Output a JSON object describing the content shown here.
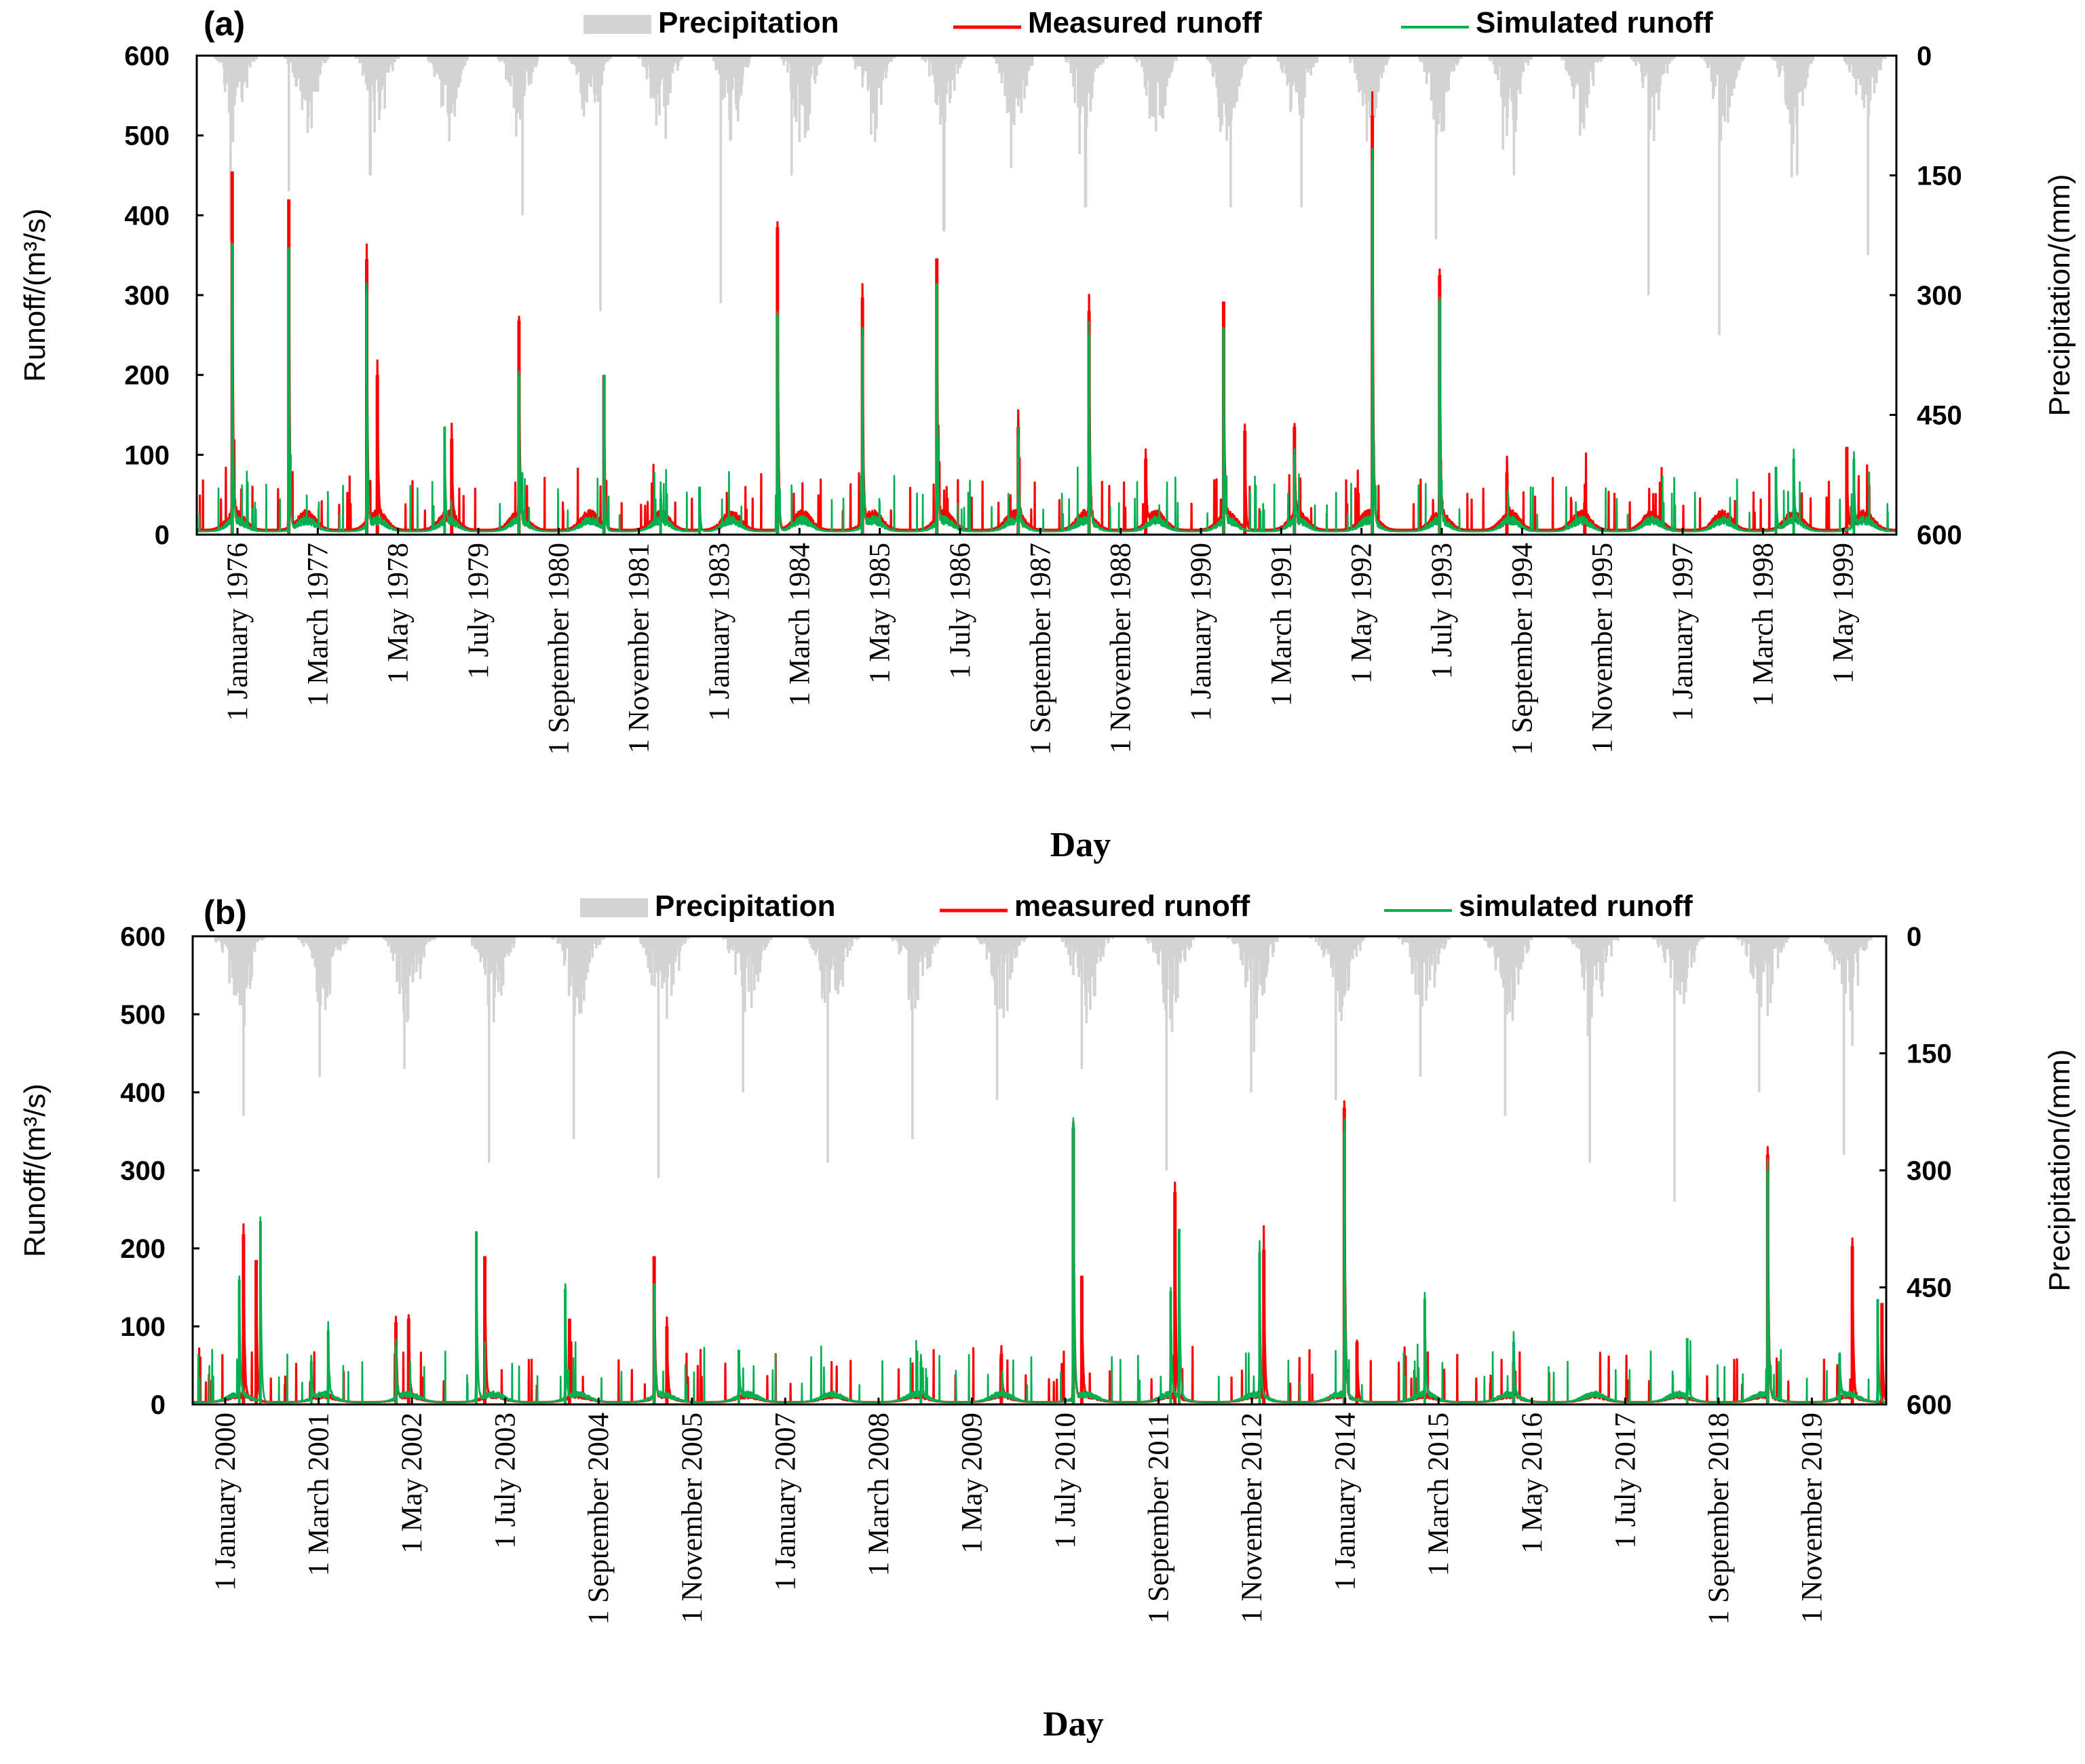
{
  "chart_data": [
    {
      "type": "line",
      "panel_label": "(a)",
      "legend": {
        "placement": "top",
        "precipitation": "Precipitation",
        "measured": "Measured runoff",
        "simulated": "Simulated runoff"
      },
      "xlabel": "Day",
      "ylabel_left": "Runoff/(m³/s)",
      "ylabel_right": "Precipitation/(mm)",
      "ylim_left": [
        0,
        600
      ],
      "ylim_right": [
        0,
        600
      ],
      "right_axis_inverted": true,
      "yticks_left": [
        "0",
        "100",
        "200",
        "300",
        "400",
        "500",
        "600"
      ],
      "yticks_right": [
        "0",
        "150",
        "300",
        "450",
        "600"
      ],
      "year_range": [
        1976,
        2000
      ],
      "xtick_labels": [
        "1 January 1976",
        "1 March 1977",
        "1 May 1978",
        "1 July 1979",
        "1 September 1980",
        "1 November 1981",
        "1 January 1983",
        "1 March 1984",
        "1 May 1985",
        "1 July 1986",
        "1 September 1987",
        "1 November 1988",
        "1 January 1990",
        "1 March 1991",
        "1 May 1992",
        "1 July 1993",
        "1 September 1994",
        "1 November 1995",
        "1 January 1997",
        "1 March 1998",
        "1 May 1999"
      ],
      "colors": {
        "precipitation": "#d3d3d3",
        "measured": "#ff0000",
        "simulated": "#00b050"
      },
      "measured_peaks": [
        [
          1976.5,
          455
        ],
        [
          1977.3,
          420
        ],
        [
          1978.4,
          345
        ],
        [
          1978.55,
          200
        ],
        [
          1979.6,
          120
        ],
        [
          1980.55,
          268
        ],
        [
          1981.75,
          200
        ],
        [
          1984.2,
          385
        ],
        [
          1985.4,
          297
        ],
        [
          1986.45,
          346
        ],
        [
          1987.6,
          135
        ],
        [
          1988.6,
          280
        ],
        [
          1989.4,
          95
        ],
        [
          1990.5,
          292
        ],
        [
          1990.8,
          130
        ],
        [
          1991.5,
          135
        ],
        [
          1992.6,
          525
        ],
        [
          1993.55,
          325
        ],
        [
          1994.5,
          78
        ],
        [
          1995.6,
          40
        ],
        [
          1999.3,
          110
        ]
      ],
      "simulated_peaks": [
        [
          1976.5,
          365
        ],
        [
          1977.3,
          360
        ],
        [
          1978.4,
          305
        ],
        [
          1979.5,
          135
        ],
        [
          1980.55,
          200
        ],
        [
          1981.75,
          200
        ],
        [
          1982.55,
          45
        ],
        [
          1983.1,
          60
        ],
        [
          1984.2,
          275
        ],
        [
          1985.4,
          250
        ],
        [
          1986.45,
          315
        ],
        [
          1987.6,
          120
        ],
        [
          1988.6,
          250
        ],
        [
          1990.5,
          260
        ],
        [
          1991.5,
          100
        ],
        [
          1992.6,
          470
        ],
        [
          1993.55,
          295
        ],
        [
          1998.3,
          85
        ],
        [
          1998.55,
          95
        ],
        [
          1999.4,
          95
        ]
      ],
      "precipitation_peaks_mm": [
        [
          1976.48,
          230
        ],
        [
          1977.3,
          170
        ],
        [
          1978.45,
          150
        ],
        [
          1980.6,
          200
        ],
        [
          1981.7,
          320
        ],
        [
          1983.4,
          310
        ],
        [
          1984.4,
          150
        ],
        [
          1986.55,
          220
        ],
        [
          1988.55,
          190
        ],
        [
          1990.6,
          190
        ],
        [
          1991.6,
          190
        ],
        [
          1993.5,
          230
        ],
        [
          1994.6,
          150
        ],
        [
          1996.5,
          300
        ],
        [
          1997.5,
          350
        ],
        [
          1998.6,
          150
        ],
        [
          1999.6,
          250
        ]
      ]
    },
    {
      "type": "line",
      "panel_label": "(b)",
      "legend": {
        "placement": "top",
        "precipitation": "Precipitation",
        "measured": "measured runoff",
        "simulated": "simulated runoff"
      },
      "xlabel": "Day",
      "ylabel_left": "Runoff/(m³/s)",
      "ylabel_right": "Precipitation/(mm)",
      "ylim_left": [
        0,
        600
      ],
      "ylim_right": [
        0,
        600
      ],
      "right_axis_inverted": true,
      "yticks_left": [
        "0",
        "100",
        "200",
        "300",
        "400",
        "500",
        "600"
      ],
      "yticks_right": [
        "0",
        "150",
        "300",
        "450",
        "600"
      ],
      "year_range": [
        2000,
        2020
      ],
      "xtick_labels": [
        "1 January 2000",
        "1 March 2001",
        "1 May 2002",
        "1 July 2003",
        "1 September 2004",
        "1 November 2005",
        "1 January 2007",
        "1 March 2008",
        "1 May 2009",
        "1 July 2010",
        "1 September 2011",
        "1 November 2012",
        "1 January 2014",
        "1 March 2015",
        "1 May 2016",
        "1 July 2017",
        "1 September 2018",
        "1 November 2019"
      ],
      "colors": {
        "precipitation": "#d3d3d3",
        "measured": "#ff0000",
        "simulated": "#00b050"
      },
      "measured_peaks": [
        [
          2000.6,
          218
        ],
        [
          2000.75,
          185
        ],
        [
          2002.4,
          105
        ],
        [
          2002.55,
          110
        ],
        [
          2003.45,
          190
        ],
        [
          2004.45,
          110
        ],
        [
          2005.45,
          190
        ],
        [
          2005.6,
          100
        ],
        [
          2009.55,
          65
        ],
        [
          2010.4,
          355
        ],
        [
          2010.5,
          165
        ],
        [
          2011.6,
          272
        ],
        [
          2012.65,
          198
        ],
        [
          2013.6,
          380
        ],
        [
          2013.75,
          80
        ],
        [
          2015.6,
          55
        ],
        [
          2018.6,
          320
        ],
        [
          2019.6,
          203
        ],
        [
          2019.95,
          130
        ]
      ],
      "simulated_peaks": [
        [
          2000.55,
          160
        ],
        [
          2000.8,
          235
        ],
        [
          2001.4,
          55
        ],
        [
          2001.6,
          95
        ],
        [
          2002.4,
          75
        ],
        [
          2003.35,
          222
        ],
        [
          2004.4,
          148
        ],
        [
          2005.45,
          155
        ],
        [
          2006.45,
          70
        ],
        [
          2008.6,
          55
        ],
        [
          2010.4,
          360
        ],
        [
          2011.55,
          145
        ],
        [
          2011.65,
          225
        ],
        [
          2012.6,
          195
        ],
        [
          2013.6,
          350
        ],
        [
          2014.55,
          135
        ],
        [
          2015.6,
          80
        ],
        [
          2017.65,
          85
        ],
        [
          2018.6,
          300
        ],
        [
          2019.45,
          65
        ],
        [
          2019.9,
          135
        ]
      ],
      "precipitation_peaks_mm": [
        [
          2000.6,
          230
        ],
        [
          2001.5,
          180
        ],
        [
          2002.5,
          170
        ],
        [
          2003.5,
          290
        ],
        [
          2004.5,
          260
        ],
        [
          2005.5,
          310
        ],
        [
          2006.5,
          200
        ],
        [
          2007.5,
          290
        ],
        [
          2008.5,
          260
        ],
        [
          2009.5,
          210
        ],
        [
          2010.5,
          170
        ],
        [
          2011.5,
          300
        ],
        [
          2012.5,
          200
        ],
        [
          2013.5,
          210
        ],
        [
          2014.5,
          180
        ],
        [
          2015.5,
          230
        ],
        [
          2016.5,
          290
        ],
        [
          2017.5,
          340
        ],
        [
          2018.5,
          200
        ],
        [
          2019.5,
          280
        ]
      ]
    }
  ]
}
